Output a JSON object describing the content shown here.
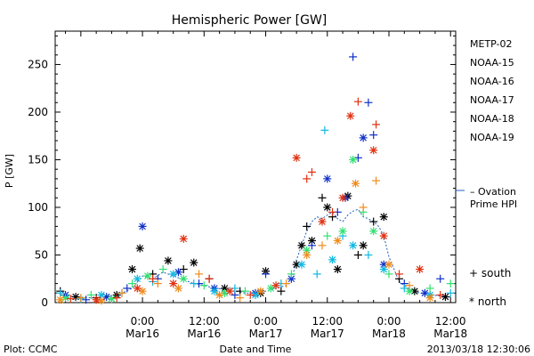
{
  "footer": {
    "plot_source": "Plot: CCMC",
    "timestamp": "2013/03/18 12:30:06"
  },
  "chart_data": {
    "type": "scatter",
    "title": "Hemispheric Power [GW]",
    "xlabel": "Date and Time",
    "ylabel": "P [GW]",
    "x_unit": "hours from 2013-03-16 00:00",
    "xlim": [
      -17,
      61
    ],
    "ylim": [
      0,
      285
    ],
    "yticks": [
      0,
      50,
      100,
      150,
      200,
      250
    ],
    "xticks": [
      {
        "x": 0,
        "time": "0:00",
        "date": "Mar16"
      },
      {
        "x": 12,
        "time": "12:00",
        "date": "Mar16"
      },
      {
        "x": 24,
        "time": "0:00",
        "date": "Mar17"
      },
      {
        "x": 36,
        "time": "12:00",
        "date": "Mar17"
      },
      {
        "x": 48,
        "time": "0:00",
        "date": "Mar18"
      },
      {
        "x": 60,
        "time": "12:00",
        "date": "Mar18"
      }
    ],
    "grid": false,
    "legend_position": "right",
    "symbol_legend": [
      {
        "symbol": "+",
        "label": "south"
      },
      {
        "symbol": "*",
        "label": "north"
      }
    ],
    "ovation_label": [
      "– Ovation",
      "Prime HPI"
    ],
    "ovation_color": "#2060c0",
    "series": [
      {
        "name": "METP-02",
        "color": "#000000",
        "points": [
          {
            "x": -16,
            "y": 12,
            "m": "+"
          },
          {
            "x": -13,
            "y": 6,
            "m": "*"
          },
          {
            "x": -9,
            "y": 5,
            "m": "+"
          },
          {
            "x": -5,
            "y": 8,
            "m": "*"
          },
          {
            "x": -2,
            "y": 35,
            "m": "*"
          },
          {
            "x": -0.5,
            "y": 57,
            "m": "*"
          },
          {
            "x": 2,
            "y": 30,
            "m": "+"
          },
          {
            "x": 5,
            "y": 44,
            "m": "*"
          },
          {
            "x": 8,
            "y": 35,
            "m": "+"
          },
          {
            "x": 10,
            "y": 42,
            "m": "*"
          },
          {
            "x": 13,
            "y": 25,
            "m": "+"
          },
          {
            "x": 16,
            "y": 15,
            "m": "*"
          },
          {
            "x": 19,
            "y": 12,
            "m": "+"
          },
          {
            "x": 23,
            "y": 10,
            "m": "*"
          },
          {
            "x": 24,
            "y": 33,
            "m": "*"
          },
          {
            "x": 27,
            "y": 12,
            "m": "+"
          },
          {
            "x": 30,
            "y": 40,
            "m": "*"
          },
          {
            "x": 31,
            "y": 60,
            "m": "*"
          },
          {
            "x": 32,
            "y": 80,
            "m": "+"
          },
          {
            "x": 33,
            "y": 65,
            "m": "*"
          },
          {
            "x": 35,
            "y": 110,
            "m": "+"
          },
          {
            "x": 36,
            "y": 100,
            "m": "*"
          },
          {
            "x": 37,
            "y": 90,
            "m": "+"
          },
          {
            "x": 38,
            "y": 35,
            "m": "*"
          },
          {
            "x": 40,
            "y": 112,
            "m": "*"
          },
          {
            "x": 42,
            "y": 50,
            "m": "+"
          },
          {
            "x": 43,
            "y": 60,
            "m": "*"
          },
          {
            "x": 45,
            "y": 85,
            "m": "+"
          },
          {
            "x": 47,
            "y": 90,
            "m": "*"
          },
          {
            "x": 50,
            "y": 25,
            "m": "+"
          },
          {
            "x": 53,
            "y": 12,
            "m": "*"
          },
          {
            "x": 56,
            "y": 8,
            "m": "+"
          },
          {
            "x": 59,
            "y": 6,
            "m": "*"
          }
        ]
      },
      {
        "name": "NOAA-15",
        "color": "#1030c8",
        "points": [
          {
            "x": -15,
            "y": 8,
            "m": "*"
          },
          {
            "x": -11,
            "y": 3,
            "m": "+"
          },
          {
            "x": -7,
            "y": 6,
            "m": "*"
          },
          {
            "x": -3,
            "y": 15,
            "m": "+"
          },
          {
            "x": 0,
            "y": 80,
            "m": "*"
          },
          {
            "x": 3,
            "y": 25,
            "m": "+"
          },
          {
            "x": 7,
            "y": 32,
            "m": "*"
          },
          {
            "x": 11,
            "y": 20,
            "m": "+"
          },
          {
            "x": 14,
            "y": 15,
            "m": "*"
          },
          {
            "x": 18,
            "y": 8,
            "m": "+"
          },
          {
            "x": 22,
            "y": 10,
            "m": "*"
          },
          {
            "x": 24,
            "y": 30,
            "m": "+"
          },
          {
            "x": 29,
            "y": 25,
            "m": "*"
          },
          {
            "x": 33,
            "y": 60,
            "m": "+"
          },
          {
            "x": 36,
            "y": 130,
            "m": "*"
          },
          {
            "x": 38,
            "y": 95,
            "m": "+"
          },
          {
            "x": 39.5,
            "y": 110,
            "m": "*"
          },
          {
            "x": 41,
            "y": 258,
            "m": "+"
          },
          {
            "x": 42,
            "y": 152,
            "m": "+"
          },
          {
            "x": 43,
            "y": 173,
            "m": "*"
          },
          {
            "x": 44,
            "y": 210,
            "m": "+"
          },
          {
            "x": 45,
            "y": 176,
            "m": "+"
          },
          {
            "x": 47,
            "y": 40,
            "m": "*"
          },
          {
            "x": 51,
            "y": 20,
            "m": "+"
          },
          {
            "x": 55,
            "y": 10,
            "m": "*"
          },
          {
            "x": 58,
            "y": 25,
            "m": "+"
          }
        ]
      },
      {
        "name": "NOAA-16",
        "color": "#10b8e0",
        "points": [
          {
            "x": -16,
            "y": 10,
            "m": "+"
          },
          {
            "x": -12,
            "y": 4,
            "m": "+"
          },
          {
            "x": -8,
            "y": 8,
            "m": "*"
          },
          {
            "x": -4,
            "y": 10,
            "m": "+"
          },
          {
            "x": -1,
            "y": 25,
            "m": "*"
          },
          {
            "x": 2,
            "y": 22,
            "m": "+"
          },
          {
            "x": 6,
            "y": 30,
            "m": "*"
          },
          {
            "x": 10,
            "y": 20,
            "m": "+"
          },
          {
            "x": 14,
            "y": 12,
            "m": "*"
          },
          {
            "x": 18,
            "y": 15,
            "m": "+"
          },
          {
            "x": 22,
            "y": 8,
            "m": "*"
          },
          {
            "x": 27,
            "y": 20,
            "m": "+"
          },
          {
            "x": 31,
            "y": 40,
            "m": "*"
          },
          {
            "x": 34,
            "y": 30,
            "m": "+"
          },
          {
            "x": 35.5,
            "y": 181,
            "m": "+"
          },
          {
            "x": 37,
            "y": 45,
            "m": "*"
          },
          {
            "x": 39,
            "y": 70,
            "m": "+"
          },
          {
            "x": 41,
            "y": 60,
            "m": "*"
          },
          {
            "x": 44,
            "y": 50,
            "m": "+"
          },
          {
            "x": 47,
            "y": 35,
            "m": "*"
          },
          {
            "x": 51,
            "y": 15,
            "m": "+"
          },
          {
            "x": 56,
            "y": 8,
            "m": "*"
          },
          {
            "x": 60,
            "y": 10,
            "m": "+"
          }
        ]
      },
      {
        "name": "NOAA-17",
        "color": "#30e070",
        "points": [
          {
            "x": -15,
            "y": 5,
            "m": "*"
          },
          {
            "x": -10,
            "y": 8,
            "m": "+"
          },
          {
            "x": -6,
            "y": 4,
            "m": "*"
          },
          {
            "x": -2,
            "y": 20,
            "m": "+"
          },
          {
            "x": 1,
            "y": 28,
            "m": "*"
          },
          {
            "x": 4,
            "y": 35,
            "m": "+"
          },
          {
            "x": 8,
            "y": 25,
            "m": "*"
          },
          {
            "x": 12,
            "y": 18,
            "m": "+"
          },
          {
            "x": 16,
            "y": 10,
            "m": "*"
          },
          {
            "x": 20,
            "y": 12,
            "m": "+"
          },
          {
            "x": 25,
            "y": 15,
            "m": "*"
          },
          {
            "x": 29,
            "y": 30,
            "m": "+"
          },
          {
            "x": 32,
            "y": 55,
            "m": "*"
          },
          {
            "x": 36,
            "y": 70,
            "m": "+"
          },
          {
            "x": 39,
            "y": 75,
            "m": "*"
          },
          {
            "x": 41,
            "y": 150,
            "m": "*"
          },
          {
            "x": 43,
            "y": 95,
            "m": "+"
          },
          {
            "x": 45,
            "y": 75,
            "m": "*"
          },
          {
            "x": 48,
            "y": 30,
            "m": "+"
          },
          {
            "x": 52,
            "y": 12,
            "m": "*"
          },
          {
            "x": 56,
            "y": 15,
            "m": "+"
          },
          {
            "x": 60,
            "y": 20,
            "m": "+"
          }
        ]
      },
      {
        "name": "NOAA-18",
        "color": "#f08c1c",
        "points": [
          {
            "x": -16,
            "y": 3,
            "m": "*"
          },
          {
            "x": -12,
            "y": 5,
            "m": "+"
          },
          {
            "x": -8,
            "y": 2,
            "m": "*"
          },
          {
            "x": -4,
            "y": 10,
            "m": "+"
          },
          {
            "x": 0,
            "y": 12,
            "m": "*"
          },
          {
            "x": 3,
            "y": 20,
            "m": "+"
          },
          {
            "x": 7,
            "y": 15,
            "m": "*"
          },
          {
            "x": 11,
            "y": 30,
            "m": "+"
          },
          {
            "x": 15,
            "y": 8,
            "m": "*"
          },
          {
            "x": 19,
            "y": 5,
            "m": "+"
          },
          {
            "x": 23,
            "y": 12,
            "m": "*"
          },
          {
            "x": 28,
            "y": 20,
            "m": "+"
          },
          {
            "x": 32,
            "y": 50,
            "m": "*"
          },
          {
            "x": 35,
            "y": 60,
            "m": "+"
          },
          {
            "x": 38,
            "y": 65,
            "m": "*"
          },
          {
            "x": 41.5,
            "y": 125,
            "m": "*"
          },
          {
            "x": 43,
            "y": 100,
            "m": "+"
          },
          {
            "x": 45.5,
            "y": 128,
            "m": "+"
          },
          {
            "x": 48,
            "y": 40,
            "m": "*"
          },
          {
            "x": 52,
            "y": 18,
            "m": "+"
          },
          {
            "x": 56,
            "y": 5,
            "m": "*"
          }
        ]
      },
      {
        "name": "NOAA-19",
        "color": "#e03010",
        "points": [
          {
            "x": -14,
            "y": 4,
            "m": "+"
          },
          {
            "x": -9,
            "y": 3,
            "m": "*"
          },
          {
            "x": -5,
            "y": 5,
            "m": "+"
          },
          {
            "x": -1,
            "y": 15,
            "m": "*"
          },
          {
            "x": 2,
            "y": 25,
            "m": "+"
          },
          {
            "x": 6,
            "y": 20,
            "m": "*"
          },
          {
            "x": 8,
            "y": 67,
            "m": "*"
          },
          {
            "x": 13,
            "y": 25,
            "m": "+"
          },
          {
            "x": 17,
            "y": 12,
            "m": "*"
          },
          {
            "x": 21,
            "y": 8,
            "m": "+"
          },
          {
            "x": 26,
            "y": 18,
            "m": "*"
          },
          {
            "x": 30,
            "y": 152,
            "m": "*"
          },
          {
            "x": 32,
            "y": 130,
            "m": "+"
          },
          {
            "x": 33,
            "y": 137,
            "m": "+"
          },
          {
            "x": 35,
            "y": 85,
            "m": "*"
          },
          {
            "x": 37,
            "y": 95,
            "m": "+"
          },
          {
            "x": 39,
            "y": 110,
            "m": "*"
          },
          {
            "x": 40.5,
            "y": 196,
            "m": "*"
          },
          {
            "x": 42,
            "y": 211,
            "m": "+"
          },
          {
            "x": 45.5,
            "y": 187,
            "m": "+"
          },
          {
            "x": 45,
            "y": 160,
            "m": "*"
          },
          {
            "x": 47,
            "y": 70,
            "m": "*"
          },
          {
            "x": 50,
            "y": 30,
            "m": "+"
          },
          {
            "x": 54,
            "y": 35,
            "m": "*"
          },
          {
            "x": 58,
            "y": 8,
            "m": "+"
          }
        ]
      }
    ],
    "ovation_series": {
      "name": "Ovation Prime HPI",
      "x": [
        -16,
        -13,
        -10,
        -7,
        -4,
        -2,
        0,
        2,
        4,
        6,
        8,
        10,
        12,
        14,
        16,
        18,
        20,
        22,
        24,
        26,
        28,
        29,
        30,
        31,
        32,
        33,
        34,
        35,
        36,
        37,
        38,
        39,
        40,
        41,
        42,
        43,
        44,
        45,
        46,
        47,
        48,
        50,
        52,
        54,
        56,
        58,
        60
      ],
      "y": [
        8,
        6,
        5,
        6,
        10,
        15,
        28,
        25,
        32,
        28,
        24,
        20,
        18,
        15,
        14,
        12,
        10,
        10,
        12,
        15,
        18,
        22,
        45,
        60,
        75,
        85,
        90,
        88,
        92,
        95,
        88,
        85,
        92,
        96,
        98,
        90,
        88,
        85,
        80,
        70,
        48,
        22,
        14,
        10,
        8,
        7,
        6
      ]
    }
  }
}
